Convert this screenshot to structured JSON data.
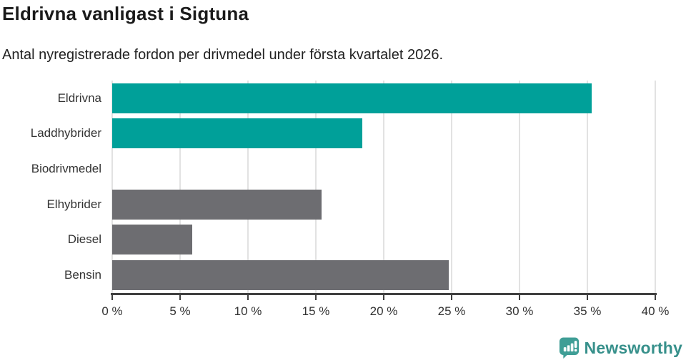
{
  "header": {
    "title": "Eldrivna vanligast i Sigtuna",
    "subtitle": "Antal nyregistrerade fordon per drivmedel under första kvartalet 2026."
  },
  "chart_data": {
    "type": "bar",
    "orientation": "horizontal",
    "title": "Eldrivna vanligast i Sigtuna",
    "subtitle": "Antal nyregistrerade fordon per drivmedel under första kvartalet 2026.",
    "categories": [
      "Eldrivna",
      "Laddhybrider",
      "Biodrivmedel",
      "Elhybrider",
      "Diesel",
      "Bensin"
    ],
    "values": [
      35.3,
      18.4,
      0,
      15.4,
      5.9,
      24.8
    ],
    "bar_colors": [
      "#00a099",
      "#00a099",
      "#00a099",
      "#6d6d71",
      "#6d6d71",
      "#6d6d71"
    ],
    "xlabel": "",
    "ylabel": "",
    "xlim": [
      0,
      40
    ],
    "xticks": [
      0,
      5,
      10,
      15,
      20,
      25,
      30,
      35,
      40
    ],
    "xtick_labels": [
      "0 %",
      "5 %",
      "10 %",
      "15 %",
      "20 %",
      "25 %",
      "30 %",
      "35 %",
      "40 %"
    ],
    "grid": true,
    "legend": false,
    "accent_color": "#00a099",
    "neutral_color": "#6d6d71",
    "gridline_color": "#e2e2e2",
    "axis_color": "#404040"
  },
  "footer": {
    "brand": "Newsworthy",
    "brand_color": "#37908b",
    "icon": "newsworthy-speech-bubble-chart-icon",
    "icon_color": "#3f9e96"
  }
}
